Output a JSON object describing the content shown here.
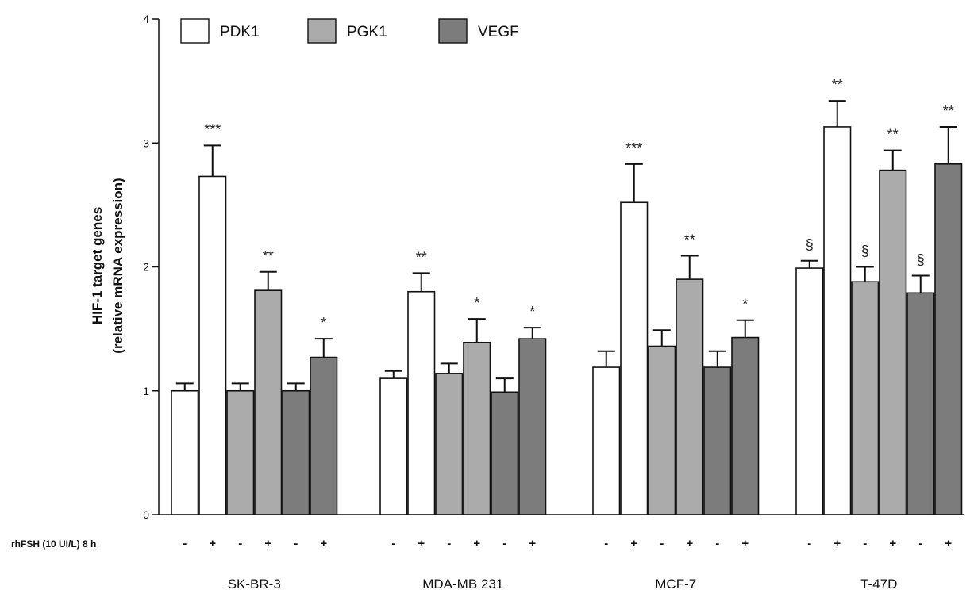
{
  "chart_data": {
    "type": "bar",
    "ylabel_line1": "HIF-1 target genes",
    "ylabel_line2": "(relative mRNA expression)",
    "ylim": [
      0,
      4
    ],
    "yticks": [
      "0",
      "1",
      "2",
      "3",
      "4"
    ],
    "grid": false,
    "legend_position": "top-left",
    "treatment_label": "rhFSH (10 UI/L) 8 h",
    "conditions": [
      "-",
      "+"
    ],
    "groups": [
      "SK-BR-3",
      "MDA-MB 231",
      "MCF-7",
      "T-47D"
    ],
    "series": [
      {
        "name": "PDK1",
        "color": "#ffffff",
        "values": [
          [
            1.0,
            2.73
          ],
          [
            1.1,
            1.8
          ],
          [
            1.19,
            2.52
          ],
          [
            1.99,
            3.13
          ]
        ],
        "errors": [
          [
            0.06,
            0.25
          ],
          [
            0.06,
            0.15
          ],
          [
            0.13,
            0.31
          ],
          [
            0.06,
            0.21
          ]
        ],
        "sig": [
          [
            "",
            "***"
          ],
          [
            "",
            "**"
          ],
          [
            "",
            "***"
          ],
          [
            "§",
            "**"
          ]
        ]
      },
      {
        "name": "PGK1",
        "color": "#ababab",
        "values": [
          [
            1.0,
            1.81
          ],
          [
            1.14,
            1.39
          ],
          [
            1.36,
            1.9
          ],
          [
            1.88,
            2.78
          ]
        ],
        "errors": [
          [
            0.06,
            0.15
          ],
          [
            0.08,
            0.19
          ],
          [
            0.13,
            0.19
          ],
          [
            0.12,
            0.16
          ]
        ],
        "sig": [
          [
            "",
            "**"
          ],
          [
            "",
            "*"
          ],
          [
            "",
            "**"
          ],
          [
            "§",
            "**"
          ]
        ]
      },
      {
        "name": "VEGF",
        "color": "#7c7c7c",
        "values": [
          [
            1.0,
            1.27
          ],
          [
            0.99,
            1.42
          ],
          [
            1.19,
            1.43
          ],
          [
            1.79,
            2.83
          ]
        ],
        "errors": [
          [
            0.06,
            0.15
          ],
          [
            0.11,
            0.09
          ],
          [
            0.13,
            0.14
          ],
          [
            0.14,
            0.3
          ]
        ],
        "sig": [
          [
            "",
            "*"
          ],
          [
            "",
            "*"
          ],
          [
            "",
            "*"
          ],
          [
            "§",
            "**"
          ]
        ]
      }
    ]
  }
}
